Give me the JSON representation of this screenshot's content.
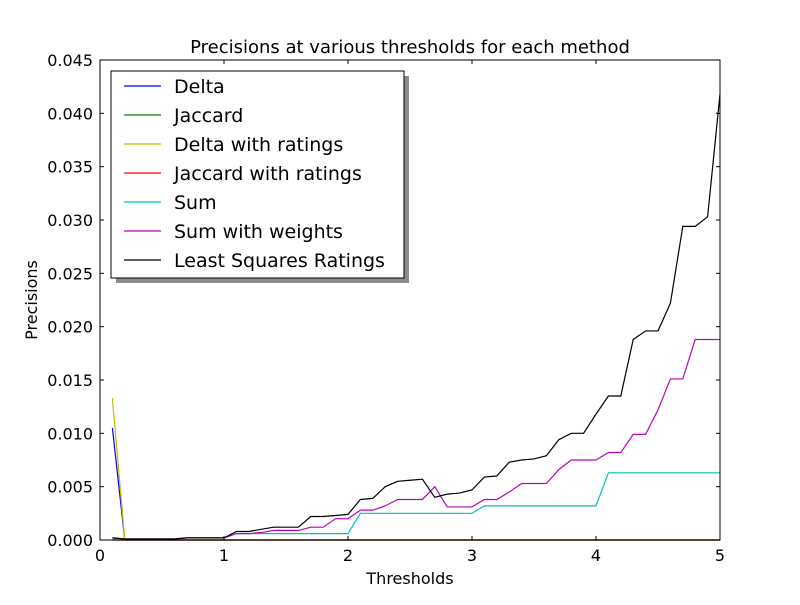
{
  "chart_data": {
    "type": "line",
    "title": "Precisions at various thresholds for each method",
    "xlabel": "Thresholds",
    "ylabel": "Precisions",
    "xlim": [
      0,
      5
    ],
    "ylim": [
      0,
      0.045
    ],
    "xticks": [
      {
        "value": 0,
        "label": "0"
      },
      {
        "value": 1,
        "label": "1"
      },
      {
        "value": 2,
        "label": "2"
      },
      {
        "value": 3,
        "label": "3"
      },
      {
        "value": 4,
        "label": "4"
      },
      {
        "value": 5,
        "label": "5"
      }
    ],
    "yticks": [
      {
        "value": 0,
        "label": "0.000"
      },
      {
        "value": 0.005,
        "label": "0.005"
      },
      {
        "value": 0.01,
        "label": "0.010"
      },
      {
        "value": 0.015,
        "label": "0.015"
      },
      {
        "value": 0.02,
        "label": "0.020"
      },
      {
        "value": 0.025,
        "label": "0.025"
      },
      {
        "value": 0.03,
        "label": "0.030"
      },
      {
        "value": 0.035,
        "label": "0.035"
      },
      {
        "value": 0.04,
        "label": "0.040"
      },
      {
        "value": 0.045,
        "label": "0.045"
      }
    ],
    "grid": false,
    "legend_position": "top-left",
    "series": [
      {
        "name": "Delta",
        "color": "#0000ff",
        "x": [
          0.1,
          0.2,
          0.3,
          1.0,
          2.0,
          3.0,
          4.0,
          5.0
        ],
        "y": [
          0.0105,
          0.0,
          0.0,
          0.0,
          0.0,
          0.0,
          0.0,
          0.0
        ]
      },
      {
        "name": "Jaccard",
        "color": "#008000",
        "x": [
          0.1,
          0.2,
          0.3,
          1.0,
          2.0,
          3.0,
          4.0,
          5.0
        ],
        "y": [
          0.0,
          0.0,
          0.0,
          0.0,
          0.0,
          0.0,
          0.0,
          0.0
        ]
      },
      {
        "name": "Delta with ratings",
        "color": "#bfbf00",
        "x": [
          0.1,
          0.2,
          0.3,
          1.0,
          2.0,
          3.0,
          4.0,
          5.0
        ],
        "y": [
          0.0133,
          0.0,
          0.0,
          0.0,
          0.0,
          0.0,
          0.0,
          0.0
        ]
      },
      {
        "name": "Jaccard with ratings",
        "color": "#ff0000",
        "x": [
          0.1,
          0.2,
          0.3,
          1.0,
          2.0,
          3.0,
          4.0,
          5.0
        ],
        "y": [
          0.0,
          0.0,
          0.0,
          0.0,
          0.0,
          0.0,
          0.0,
          0.0
        ]
      },
      {
        "name": "Sum",
        "color": "#00bfbf",
        "x": [
          0.1,
          0.2,
          0.3,
          0.6,
          0.7,
          1.0,
          1.1,
          1.5,
          1.6,
          2.0,
          2.1,
          3.0,
          3.1,
          4.0,
          4.1,
          5.0
        ],
        "y": [
          0.0002,
          0.0001,
          0.0001,
          0.0001,
          0.0002,
          0.0002,
          0.0006,
          0.0006,
          0.0006,
          0.0006,
          0.0025,
          0.0025,
          0.0032,
          0.0032,
          0.0063,
          0.0063
        ]
      },
      {
        "name": "Sum with weights",
        "color": "#bf00bf",
        "x": [
          0.1,
          0.2,
          0.3,
          0.6,
          0.7,
          1.0,
          1.1,
          1.2,
          1.3,
          1.4,
          1.6,
          1.7,
          1.8,
          1.9,
          2.0,
          2.1,
          2.2,
          2.3,
          2.4,
          2.6,
          2.7,
          2.8,
          2.9,
          3.0,
          3.1,
          3.2,
          3.3,
          3.4,
          3.5,
          3.6,
          3.7,
          3.8,
          3.9,
          4.0,
          4.1,
          4.2,
          4.3,
          4.4,
          4.5,
          4.6,
          4.7,
          4.8,
          4.9,
          5.0
        ],
        "y": [
          0.0002,
          0.0001,
          0.0001,
          0.0001,
          0.0002,
          0.0002,
          0.0006,
          0.0006,
          0.0007,
          0.0009,
          0.0009,
          0.0012,
          0.0012,
          0.002,
          0.002,
          0.0028,
          0.0028,
          0.0032,
          0.0038,
          0.0038,
          0.005,
          0.0031,
          0.0031,
          0.0031,
          0.0038,
          0.0038,
          0.0045,
          0.0053,
          0.0053,
          0.0053,
          0.0066,
          0.0075,
          0.0075,
          0.0075,
          0.0082,
          0.0082,
          0.0099,
          0.0099,
          0.0122,
          0.0151,
          0.0151,
          0.0188,
          0.0188,
          0.0188
        ]
      },
      {
        "name": "Least Squares Ratings",
        "color": "#000000",
        "x": [
          0.1,
          0.2,
          0.3,
          0.6,
          0.7,
          1.0,
          1.1,
          1.2,
          1.3,
          1.4,
          1.6,
          1.7,
          1.8,
          1.9,
          2.0,
          2.1,
          2.2,
          2.3,
          2.4,
          2.5,
          2.6,
          2.7,
          2.8,
          2.9,
          3.0,
          3.1,
          3.2,
          3.3,
          3.4,
          3.5,
          3.6,
          3.7,
          3.8,
          3.9,
          4.0,
          4.1,
          4.2,
          4.3,
          4.4,
          4.5,
          4.6,
          4.7,
          4.8,
          4.9,
          5.0
        ],
        "y": [
          0.0002,
          0.0001,
          0.0001,
          0.0001,
          0.0002,
          0.0002,
          0.0008,
          0.0008,
          0.001,
          0.0012,
          0.0012,
          0.0022,
          0.0022,
          0.0023,
          0.0024,
          0.0038,
          0.0039,
          0.005,
          0.0055,
          0.0056,
          0.0057,
          0.004,
          0.0043,
          0.0044,
          0.0047,
          0.0059,
          0.006,
          0.0073,
          0.0075,
          0.0076,
          0.0079,
          0.0094,
          0.01,
          0.01,
          0.0118,
          0.0135,
          0.0135,
          0.0188,
          0.0196,
          0.0196,
          0.0222,
          0.0294,
          0.0294,
          0.0303,
          0.0418
        ]
      }
    ]
  }
}
